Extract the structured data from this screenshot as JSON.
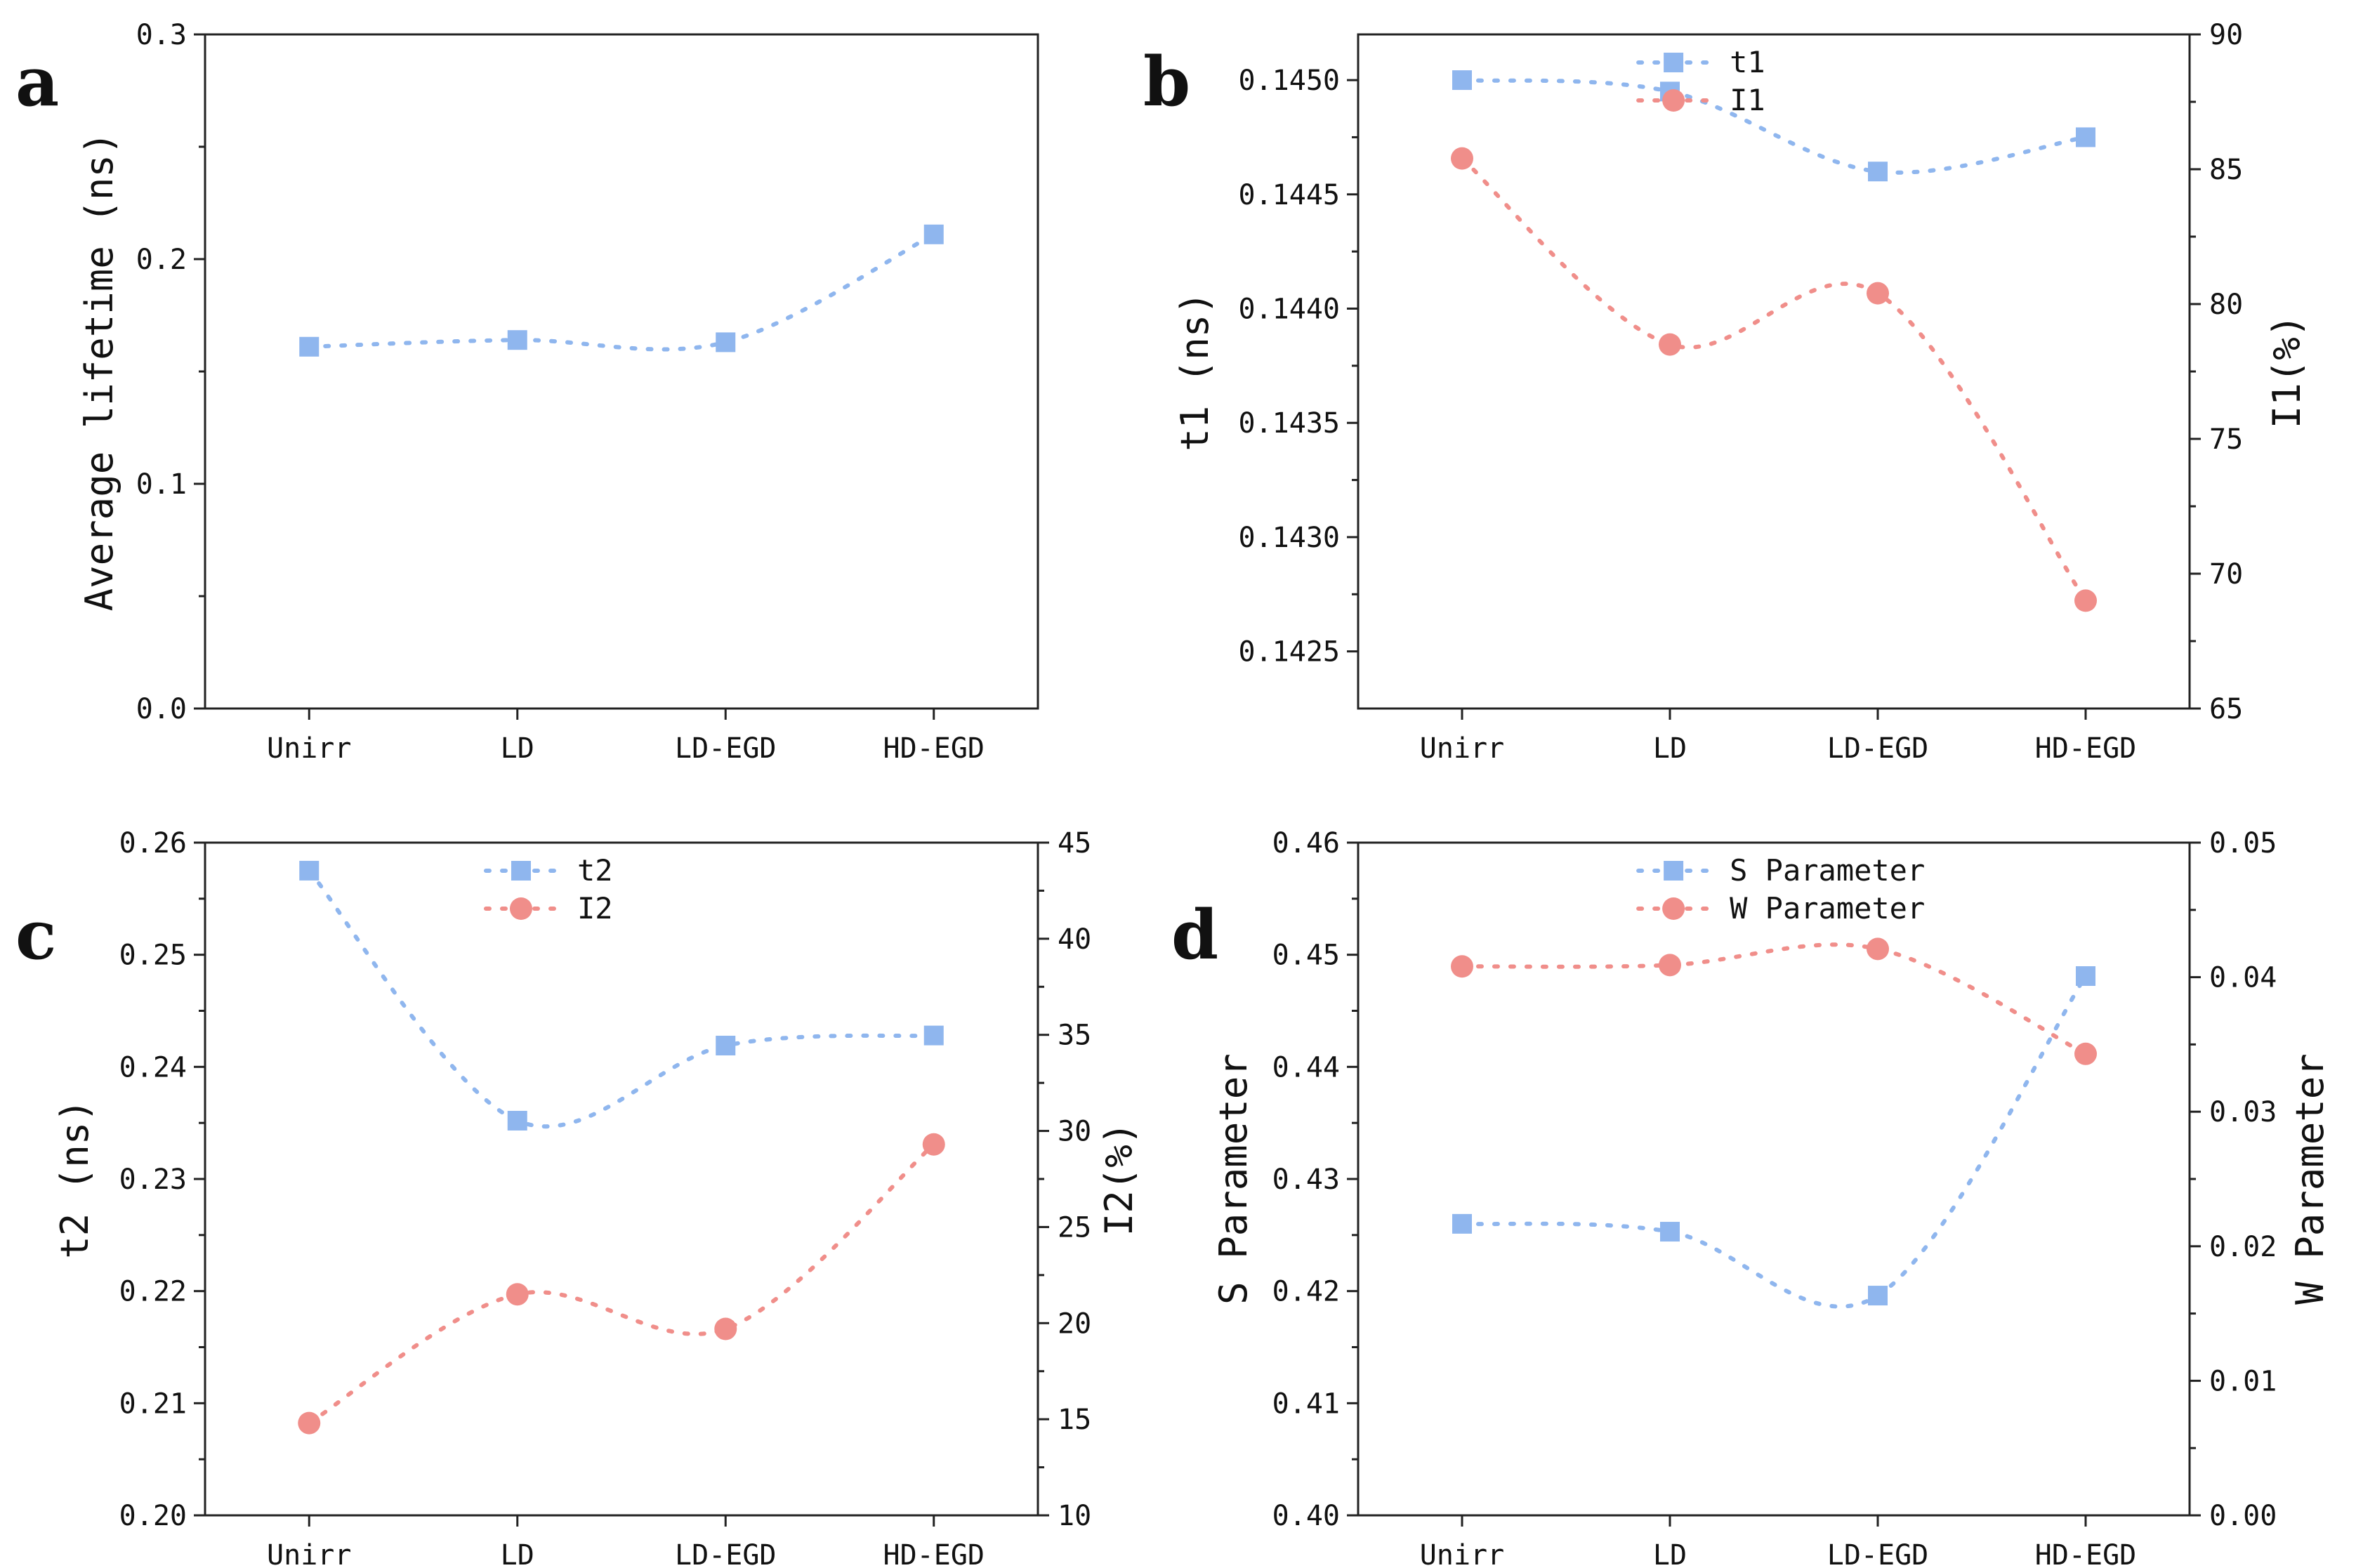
{
  "colors": {
    "blue": "#8fb6ee",
    "red": "#f08e8a"
  },
  "chart_data": [
    {
      "type": "line",
      "panel": "a",
      "categories": [
        "Unirr",
        "LD",
        "LD-EGD",
        "HD-EGD"
      ],
      "ylabel": "Average lifetime (ns)",
      "ylim": [
        0.0,
        0.3
      ],
      "yticks": [
        0.0,
        0.1,
        0.2,
        0.3
      ],
      "ytick_labels": [
        "0.0",
        "0.1",
        "0.2",
        "0.3"
      ],
      "legend": "none",
      "series": [
        {
          "name": "Average lifetime",
          "marker": "square",
          "color": "#8fb6ee",
          "axis": "left",
          "values": [
            0.161,
            0.164,
            0.163,
            0.211
          ]
        }
      ]
    },
    {
      "type": "line",
      "panel": "b",
      "categories": [
        "Unirr",
        "LD",
        "LD-EGD",
        "HD-EGD"
      ],
      "ylabel": "t1 (ns)",
      "ylim": [
        0.14225,
        0.1452
      ],
      "yticks": [
        0.1425,
        0.143,
        0.1435,
        0.144,
        0.1445,
        0.145
      ],
      "ytick_labels": [
        "0.1425",
        "0.1430",
        "0.1435",
        "0.1440",
        "0.1445",
        "0.1450"
      ],
      "y2label": "I1(%)",
      "y2lim": [
        65,
        90
      ],
      "y2ticks": [
        65,
        70,
        75,
        80,
        85,
        90
      ],
      "y2tick_labels": [
        "65",
        "70",
        "75",
        "80",
        "85",
        "90"
      ],
      "legend": "top-center",
      "series": [
        {
          "name": "t1",
          "marker": "square",
          "color": "#8fb6ee",
          "axis": "left",
          "values": [
            0.145,
            0.14495,
            0.1446,
            0.14475
          ]
        },
        {
          "name": "I1",
          "marker": "circle",
          "color": "#f08e8a",
          "axis": "right",
          "values": [
            85.4,
            78.5,
            80.4,
            69.0
          ]
        }
      ]
    },
    {
      "type": "line",
      "panel": "c",
      "categories": [
        "Unirr",
        "LD",
        "LD-EGD",
        "HD-EGD"
      ],
      "ylabel": "t2 (ns)",
      "ylim": [
        0.2,
        0.26
      ],
      "yticks": [
        0.2,
        0.21,
        0.22,
        0.23,
        0.24,
        0.25,
        0.26
      ],
      "ytick_labels": [
        "0.20",
        "0.21",
        "0.22",
        "0.23",
        "0.24",
        "0.25",
        "0.26"
      ],
      "y2label": "I2(%)",
      "y2lim": [
        10,
        45
      ],
      "y2ticks": [
        10,
        15,
        20,
        25,
        30,
        35,
        40,
        45
      ],
      "y2tick_labels": [
        "10",
        "15",
        "20",
        "25",
        "30",
        "35",
        "40",
        "45"
      ],
      "legend": "top-center",
      "series": [
        {
          "name": "t2",
          "marker": "square",
          "color": "#8fb6ee",
          "axis": "left",
          "values": [
            0.2575,
            0.2352,
            0.2419,
            0.2428
          ]
        },
        {
          "name": "I2",
          "marker": "circle",
          "color": "#f08e8a",
          "axis": "right",
          "values": [
            14.8,
            21.5,
            19.7,
            29.3
          ]
        }
      ]
    },
    {
      "type": "line",
      "panel": "d",
      "categories": [
        "Unirr",
        "LD",
        "LD-EGD",
        "HD-EGD"
      ],
      "ylabel": "S Parameter",
      "ylim": [
        0.4,
        0.46
      ],
      "yticks": [
        0.4,
        0.41,
        0.42,
        0.43,
        0.44,
        0.45,
        0.46
      ],
      "ytick_labels": [
        "0.40",
        "0.41",
        "0.42",
        "0.43",
        "0.44",
        "0.45",
        "0.46"
      ],
      "y2label": "W Parameter",
      "y2lim": [
        0.0,
        0.05
      ],
      "y2ticks": [
        0.0,
        0.01,
        0.02,
        0.03,
        0.04,
        0.05
      ],
      "y2tick_labels": [
        "0.00",
        "0.01",
        "0.02",
        "0.03",
        "0.04",
        "0.05"
      ],
      "legend": "top-center",
      "series": [
        {
          "name": "S Parameter",
          "marker": "square",
          "color": "#8fb6ee",
          "axis": "left",
          "values": [
            0.426,
            0.4253,
            0.4196,
            0.4481
          ]
        },
        {
          "name": "W Parameter",
          "marker": "circle",
          "color": "#f08e8a",
          "axis": "right",
          "values": [
            0.0408,
            0.0409,
            0.0421,
            0.0343
          ]
        }
      ]
    }
  ]
}
